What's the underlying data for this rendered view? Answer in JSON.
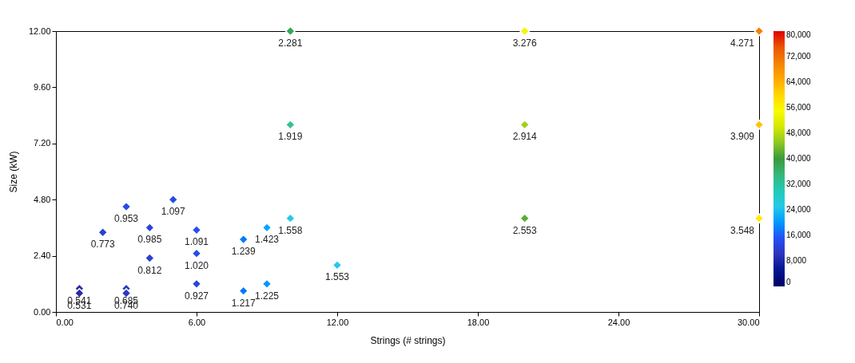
{
  "chart_data": {
    "type": "scatter",
    "xlabel": "Strings (# strings)",
    "ylabel": "Size (kW)",
    "marker": "diamond",
    "grid": false,
    "xlim": [
      0,
      30
    ],
    "ylim": [
      0,
      12
    ],
    "xticks": [
      {
        "value": 0,
        "label": "0.00"
      },
      {
        "value": 6,
        "label": "6.00"
      },
      {
        "value": 12,
        "label": "12.00"
      },
      {
        "value": 18,
        "label": "18.00"
      },
      {
        "value": 24,
        "label": "24.00"
      },
      {
        "value": 30,
        "label": "30.00"
      }
    ],
    "yticks": [
      {
        "value": 0,
        "label": "0.00"
      },
      {
        "value": 2.4,
        "label": "2.40"
      },
      {
        "value": 4.8,
        "label": "4.80"
      },
      {
        "value": 7.2,
        "label": "7.20"
      },
      {
        "value": 9.6,
        "label": "9.60"
      },
      {
        "value": 12,
        "label": "12.00"
      }
    ],
    "clim": [
      0,
      80000
    ],
    "cticks": [
      {
        "value": 0,
        "label": "0"
      },
      {
        "value": 8000,
        "label": "8,000"
      },
      {
        "value": 16000,
        "label": "16,000"
      },
      {
        "value": 24000,
        "label": "24,000"
      },
      {
        "value": 32000,
        "label": "32,000"
      },
      {
        "value": 40000,
        "label": "40,000"
      },
      {
        "value": 48000,
        "label": "48,000"
      },
      {
        "value": 56000,
        "label": "56,000"
      },
      {
        "value": 64000,
        "label": "64,000"
      },
      {
        "value": 72000,
        "label": "72,000"
      },
      {
        "value": 80000,
        "label": "80,000"
      }
    ],
    "x": [
      1,
      1,
      3,
      3,
      2,
      3,
      5,
      4,
      4,
      6,
      6,
      6,
      8,
      9,
      10,
      8,
      9,
      12,
      20,
      30,
      10,
      20,
      30,
      10,
      20,
      30
    ],
    "values": [
      1,
      0.8,
      1,
      0.8,
      3.4,
      4.5,
      4.8,
      3.6,
      2.3,
      3.5,
      2.5,
      1.2,
      3.1,
      3.6,
      4,
      0.9,
      1.2,
      2,
      4,
      4,
      8,
      8,
      8,
      12,
      12,
      12
    ],
    "cvalues": [
      8000,
      8000,
      11000,
      11000,
      12000,
      14000,
      14000,
      13000,
      12000,
      15000,
      14000,
      13000,
      18000,
      21000,
      25000,
      18000,
      20000,
      25000,
      42000,
      58000,
      33500,
      46000,
      62000,
      38000,
      54000,
      70000
    ],
    "annotations": [
      {
        "text": "0.541",
        "x": 1,
        "y": 1
      },
      {
        "text": "0.531",
        "x": 1,
        "y": 0.8
      },
      {
        "text": "0.685",
        "x": 3,
        "y": 1
      },
      {
        "text": "0.740",
        "x": 3,
        "y": 0.8
      },
      {
        "text": "0.773",
        "x": 2,
        "y": 3.4
      },
      {
        "text": "0.953",
        "x": 3,
        "y": 4.5
      },
      {
        "text": "1.097",
        "x": 5,
        "y": 4.8
      },
      {
        "text": "0.985",
        "x": 4,
        "y": 3.6
      },
      {
        "text": "0.812",
        "x": 4,
        "y": 2.3
      },
      {
        "text": "1.091",
        "x": 6,
        "y": 3.5
      },
      {
        "text": "1.020",
        "x": 6,
        "y": 2.5
      },
      {
        "text": "0.927",
        "x": 6,
        "y": 1.2
      },
      {
        "text": "1.239",
        "x": 8,
        "y": 3.1
      },
      {
        "text": "1.423",
        "x": 9,
        "y": 3.6
      },
      {
        "text": "1.558",
        "x": 10,
        "y": 4
      },
      {
        "text": "1.217",
        "x": 8,
        "y": 0.9
      },
      {
        "text": "1.225",
        "x": 9,
        "y": 1.2
      },
      {
        "text": "1.553",
        "x": 12,
        "y": 2
      },
      {
        "text": "2.553",
        "x": 20,
        "y": 4
      },
      {
        "text": "3.548",
        "x": 30,
        "y": 4
      },
      {
        "text": "1.919",
        "x": 10,
        "y": 8
      },
      {
        "text": "2.914",
        "x": 20,
        "y": 8
      },
      {
        "text": "3.909",
        "x": 30,
        "y": 8
      },
      {
        "text": "2.281",
        "x": 10,
        "y": 12
      },
      {
        "text": "3.276",
        "x": 20,
        "y": 12
      },
      {
        "text": "4.271",
        "x": 30,
        "y": 12
      }
    ]
  }
}
